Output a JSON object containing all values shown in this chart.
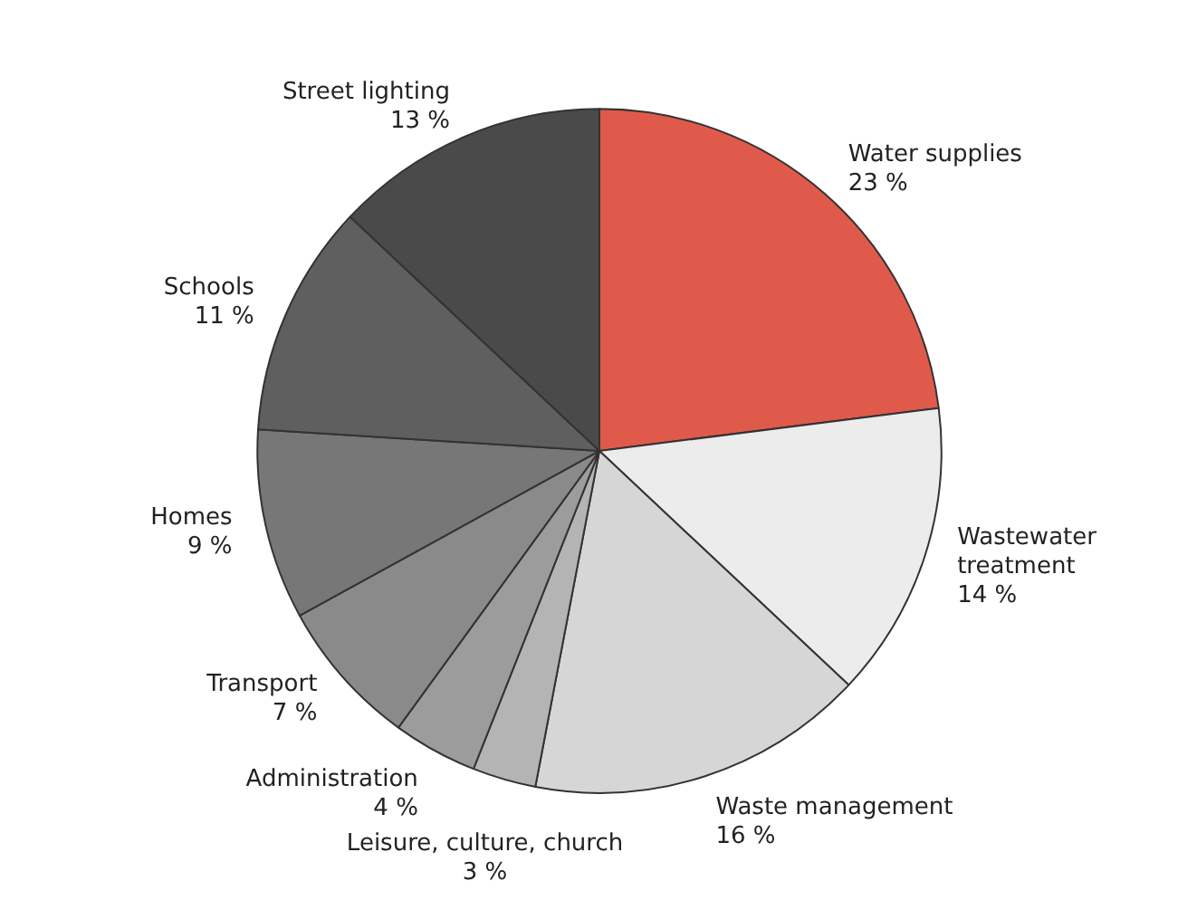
{
  "chart_data": {
    "type": "pie",
    "categories": [
      "Water supplies",
      "Wastewater treatment",
      "Waste management",
      "Leisure, culture, church",
      "Administration",
      "Transport",
      "Homes",
      "Schools",
      "Street lighting"
    ],
    "values": [
      23,
      14,
      16,
      3,
      4,
      7,
      9,
      11,
      13
    ],
    "colors": [
      "#e05a4b",
      "#ececec",
      "#d6d6d6",
      "#b4b4b4",
      "#9c9c9c",
      "#8a8a8a",
      "#777777",
      "#5f5f5f",
      "#4a4a4a"
    ],
    "value_labels": [
      "23 %",
      "14 %",
      "16 %",
      "3 %",
      "4 %",
      "7 %",
      "9 %",
      "11 %",
      "13 %"
    ]
  }
}
